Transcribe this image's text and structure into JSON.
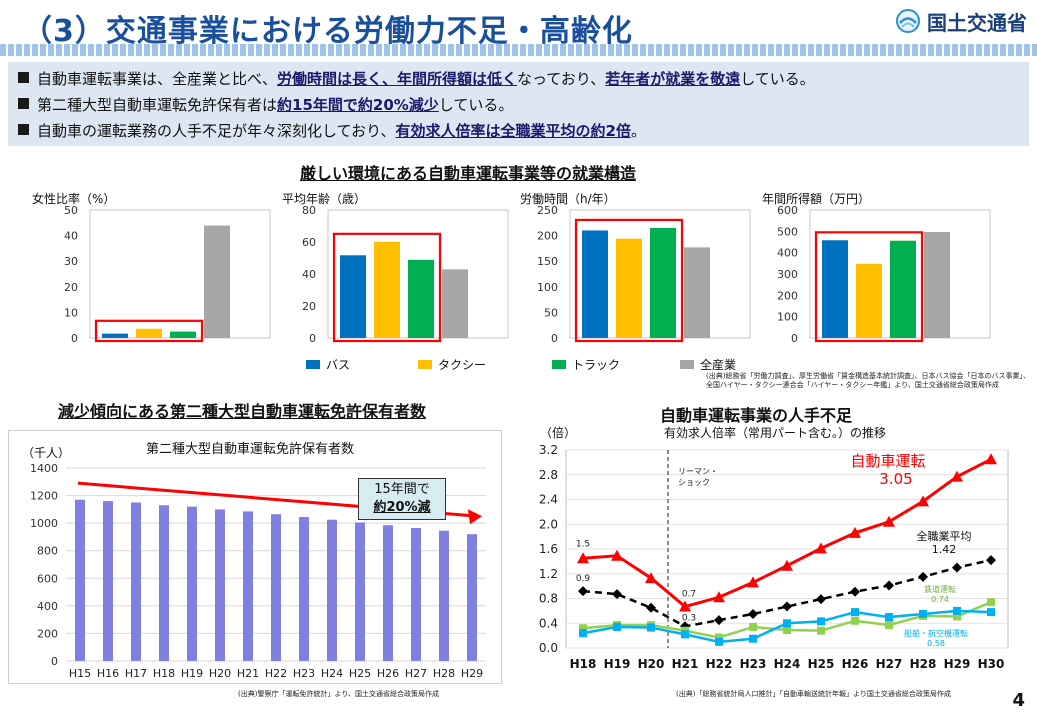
{
  "header": {
    "title": "（3）交通事業における労働力不足・高齢化",
    "logo_text": "国土交通省"
  },
  "summary": {
    "bullets": [
      {
        "parts": [
          {
            "t": "自動車運転事業は、全産業と比べ、",
            "hl": false
          },
          {
            "t": "労働時間は長く、年間所得額は低く",
            "hl": true
          },
          {
            "t": "なっており、",
            "hl": false
          },
          {
            "t": "若年者が就業を敬遠",
            "hl": true
          },
          {
            "t": "している。",
            "hl": false
          }
        ]
      },
      {
        "parts": [
          {
            "t": "第二種大型自動車運転免許保有者は",
            "hl": false
          },
          {
            "t": "約15年間で約20%減少",
            "hl": true
          },
          {
            "t": "している。",
            "hl": false
          }
        ]
      },
      {
        "parts": [
          {
            "t": "自動車の運転業務の人手不足が年々深刻化しており、",
            "hl": false
          },
          {
            "t": "有効求人倍率は全職業平均の約2倍",
            "hl": true
          },
          {
            "t": "。",
            "hl": false
          }
        ]
      }
    ]
  },
  "employment": {
    "section_title": "厳しい環境にある自動車運転事業等の就業構造",
    "legend": [
      {
        "name": "バス",
        "color": "#0070c0"
      },
      {
        "name": "タクシー",
        "color": "#ffc000"
      },
      {
        "name": "トラック",
        "color": "#00b050"
      },
      {
        "name": "全産業",
        "color": "#a6a6a6"
      }
    ],
    "source": "(出典)総務省「労働力調査」、厚生労働省「賃金構造基本統計調査」、日本バス協会「日本のバス事業」、\n全国ハイヤー・タクシー連合会「ハイヤー・タクシー年鑑」より、国土交通省総合政策局作成"
  },
  "license": {
    "section_title": "減少傾向にある第二種大型自動車運転免許保有者数",
    "unit": "（千人）",
    "callout_line1": "15年間で",
    "callout_line2": "約20%減",
    "source": "(出典)警察庁「運転免許統計」より、国土交通省総合政策局作成"
  },
  "shortage": {
    "section_title": "自動車運転事業の人手不足",
    "unit": "（倍）",
    "lehman_line1": "リーマン・",
    "lehman_line2": "ショック",
    "label_jidosha": "自動車運転",
    "value_jidosha": "3.05",
    "label_zen": "全職業平均",
    "value_zen": "1.42",
    "label_tetsudo": "鉄道運転",
    "value_tetsudo": "0.74",
    "label_senpaku": "船舶・航空機運転",
    "value_senpaku": "0.58",
    "ann_15": "1.5",
    "ann_09": "0.9",
    "ann_07": "0.7",
    "ann_03": "0.3",
    "source": "(出典)「総務省統計局人口推計」「自動車輸送統計年報」より国土交通省総合政策局作成"
  },
  "page_number": "4",
  "chart_data": [
    {
      "type": "bar",
      "title": "女性比率（%）",
      "categories": [
        "バス",
        "タクシー",
        "トラック",
        "全産業"
      ],
      "values": [
        1.7,
        3.6,
        2.5,
        43.9
      ],
      "ylim": [
        0,
        50
      ],
      "yticks": [
        0,
        10,
        20,
        30,
        40,
        50
      ],
      "colors": [
        "#0070c0",
        "#ffc000",
        "#00b050",
        "#a6a6a6"
      ]
    },
    {
      "type": "bar",
      "title": "平均年齢（歳）",
      "categories": [
        "バス",
        "タクシー",
        "トラック",
        "全産業"
      ],
      "values": [
        51.7,
        60.1,
        48.9,
        42.9
      ],
      "ylim": [
        0,
        80
      ],
      "yticks": [
        0,
        20,
        40,
        60,
        80
      ],
      "colors": [
        "#0070c0",
        "#ffc000",
        "#00b050",
        "#a6a6a6"
      ]
    },
    {
      "type": "bar",
      "title": "労働時間（h/年）",
      "categories": [
        "バス",
        "タクシー",
        "トラック",
        "全産業"
      ],
      "values": [
        210,
        194,
        215,
        177
      ],
      "ylim": [
        0,
        250
      ],
      "yticks": [
        0,
        50,
        100,
        150,
        200,
        250
      ],
      "colors": [
        "#0070c0",
        "#ffc000",
        "#00b050",
        "#a6a6a6"
      ]
    },
    {
      "type": "bar",
      "title": "年間所得額（万円）",
      "categories": [
        "バス",
        "タクシー",
        "トラック",
        "全産業"
      ],
      "values": [
        458,
        348,
        456,
        497
      ],
      "ylim": [
        0,
        600
      ],
      "yticks": [
        0,
        100,
        200,
        300,
        400,
        500,
        600
      ],
      "colors": [
        "#0070c0",
        "#ffc000",
        "#00b050",
        "#a6a6a6"
      ]
    },
    {
      "type": "bar",
      "title": "第二種大型自動車運転免許保有者数",
      "ylabel": "（千人）",
      "categories": [
        "H15",
        "H16",
        "H17",
        "H18",
        "H19",
        "H20",
        "H21",
        "H22",
        "H23",
        "H24",
        "H25",
        "H26",
        "H27",
        "H28",
        "H29"
      ],
      "values": [
        1170,
        1160,
        1150,
        1130,
        1120,
        1100,
        1085,
        1065,
        1045,
        1025,
        1005,
        985,
        965,
        945,
        920
      ],
      "ylim": [
        0,
        1400
      ],
      "yticks": [
        0,
        200,
        400,
        600,
        800,
        1000,
        1200,
        1400
      ],
      "colors": [
        "#8080e0"
      ]
    },
    {
      "type": "line",
      "title": "有効求人倍率（常用パート含む。）の推移",
      "ylabel": "（倍）",
      "x": [
        "H18",
        "H19",
        "H20",
        "H21",
        "H22",
        "H23",
        "H24",
        "H25",
        "H26",
        "H27",
        "H28",
        "H29",
        "H30"
      ],
      "ylim": [
        0,
        3.2
      ],
      "yticks": [
        0.0,
        0.4,
        0.8,
        1.2,
        1.6,
        2.0,
        2.4,
        2.8,
        3.2
      ],
      "series": [
        {
          "name": "自動車運転",
          "color": "#ff0000",
          "values": [
            1.45,
            1.49,
            1.13,
            0.67,
            0.82,
            1.06,
            1.33,
            1.61,
            1.86,
            2.04,
            2.37,
            2.77,
            3.05
          ]
        },
        {
          "name": "全職業平均",
          "color": "#000000",
          "values": [
            0.92,
            0.87,
            0.65,
            0.35,
            0.45,
            0.55,
            0.67,
            0.79,
            0.91,
            1.01,
            1.15,
            1.3,
            1.42
          ]
        },
        {
          "name": "鉄道運転",
          "color": "#92d050",
          "values": [
            0.32,
            0.37,
            0.37,
            0.28,
            0.17,
            0.34,
            0.29,
            0.28,
            0.44,
            0.37,
            0.52,
            0.51,
            0.74
          ]
        },
        {
          "name": "船舶・航空機運転",
          "color": "#00b0f0",
          "values": [
            0.24,
            0.34,
            0.33,
            0.22,
            0.1,
            0.15,
            0.4,
            0.43,
            0.58,
            0.5,
            0.55,
            0.6,
            0.58
          ]
        }
      ]
    }
  ]
}
